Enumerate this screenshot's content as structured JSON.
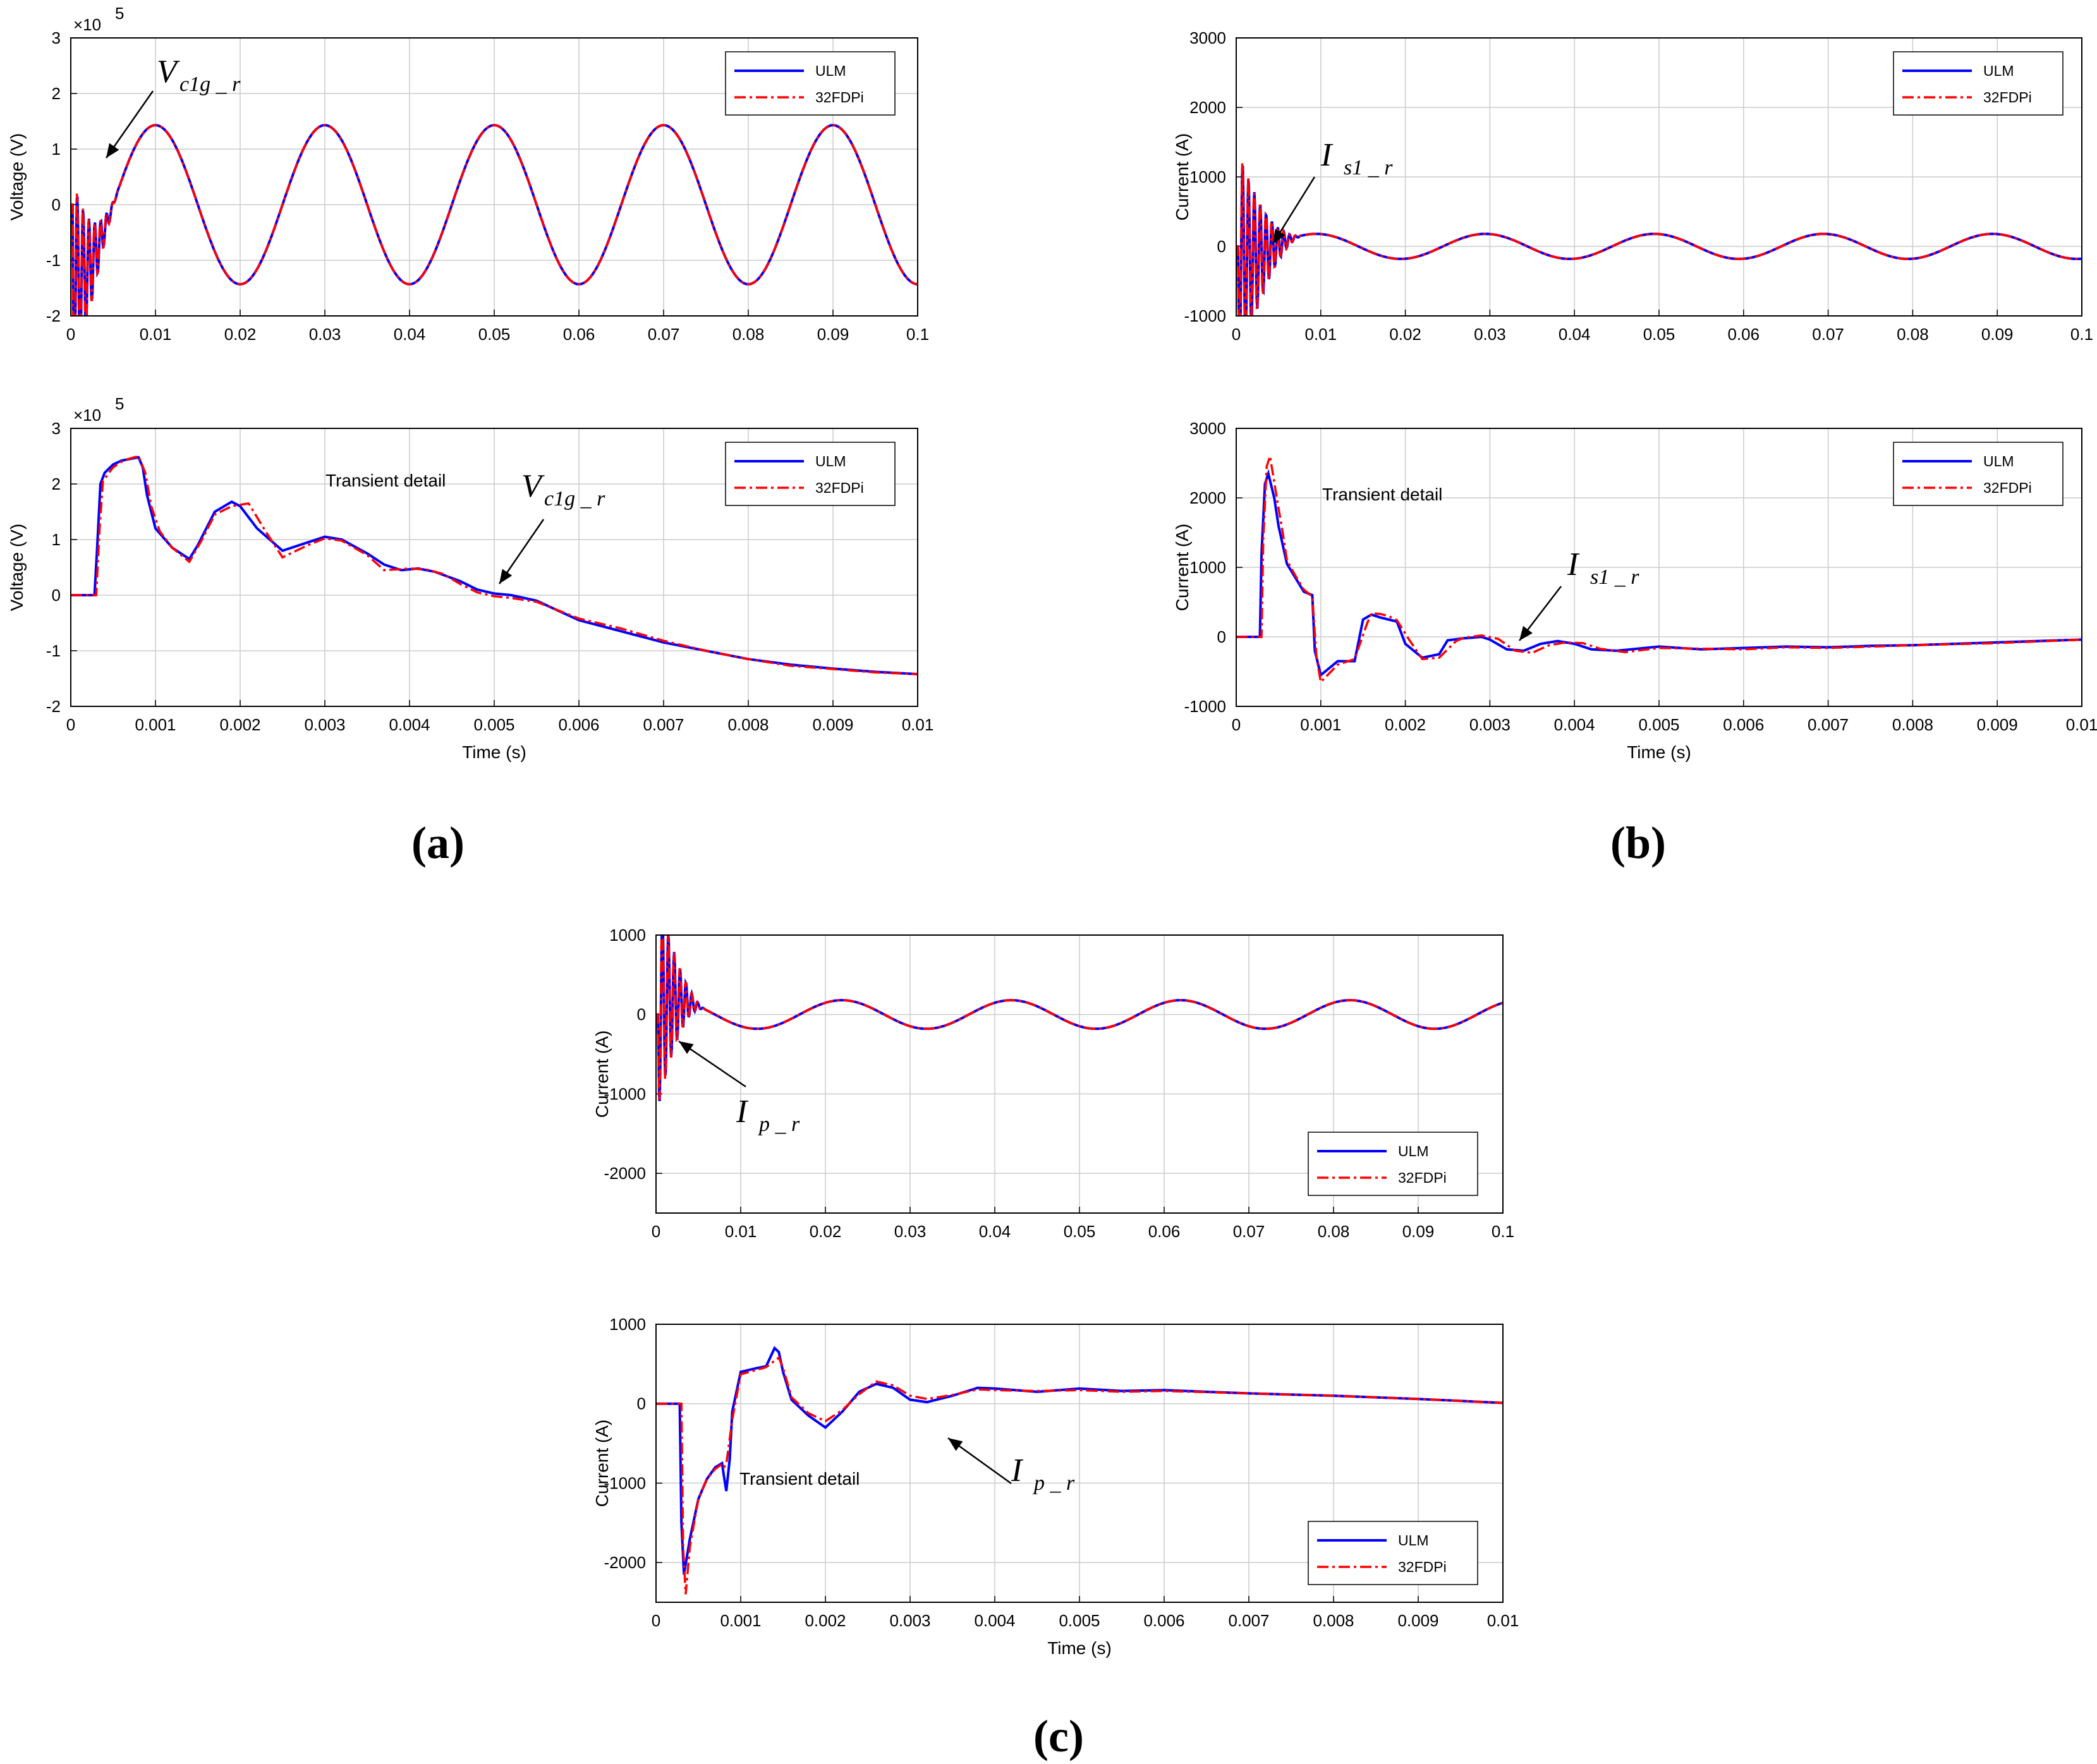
{
  "figure": {
    "panel_labels": [
      "(a)",
      "(b)",
      "(c)"
    ]
  },
  "colors": {
    "ulm": "#0000ff",
    "fdpi": "#ff0000",
    "grid": "#cccccc"
  },
  "chart_data": [
    {
      "id": "a_full",
      "type": "line",
      "panel": "(a)",
      "xlabel": "",
      "ylabel": "Voltage (V)",
      "xlim": [
        0,
        0.1
      ],
      "ylim": [
        -2,
        3
      ],
      "x_ticks": [
        "0",
        "0.01",
        "0.02",
        "0.03",
        "0.04",
        "0.05",
        "0.06",
        "0.07",
        "0.08",
        "0.09",
        "0.1"
      ],
      "y_ticks": [
        "3",
        "2",
        "1",
        "0",
        "-1",
        "-2"
      ],
      "exponent": "10",
      "exponent_power": "5",
      "legend": [
        "ULM",
        "32FDPi"
      ],
      "annotation": {
        "symbol": "V",
        "subscript": "c1g _ r",
        "text": ""
      },
      "signal": {
        "kind": "sine_with_transient",
        "amplitude": 1.43,
        "frequency_hz": 50,
        "phase_deg": -90,
        "transient_end_s": 0.006
      }
    },
    {
      "id": "a_detail",
      "type": "line",
      "panel": "(a)",
      "xlabel": "Time (s)",
      "ylabel": "Voltage (V)",
      "xlim": [
        0,
        0.01
      ],
      "ylim": [
        -2,
        3
      ],
      "x_ticks": [
        "0",
        "0.001",
        "0.002",
        "0.003",
        "0.004",
        "0.005",
        "0.006",
        "0.007",
        "0.008",
        "0.009",
        "0.01"
      ],
      "y_ticks": [
        "3",
        "2",
        "1",
        "0",
        "-1",
        "-2"
      ],
      "exponent": "10",
      "exponent_power": "5",
      "legend": [
        "ULM",
        "32FDPi"
      ],
      "annotation": {
        "symbol": "V",
        "subscript": "c1g _ r",
        "text": "Transient detail"
      },
      "series": [
        {
          "name": "ULM",
          "x": [
            0,
            0.00028,
            0.00031,
            0.00035,
            0.0004,
            0.0005,
            0.0006,
            0.0007,
            0.0008,
            0.00085,
            0.0009,
            0.001,
            0.0012,
            0.0014,
            0.0015,
            0.0017,
            0.0019,
            0.002,
            0.0022,
            0.0025,
            0.0028,
            0.003,
            0.0032,
            0.0035,
            0.0037,
            0.0039,
            0.0041,
            0.0043,
            0.0046,
            0.0048,
            0.005,
            0.0052,
            0.0055,
            0.006,
            0.0065,
            0.007,
            0.0075,
            0.008,
            0.0085,
            0.009,
            0.0095,
            0.01
          ],
          "y": [
            0,
            0,
            0.8,
            2.0,
            2.2,
            2.35,
            2.42,
            2.45,
            2.48,
            2.3,
            1.8,
            1.2,
            0.85,
            0.65,
            0.9,
            1.5,
            1.68,
            1.6,
            1.2,
            0.8,
            0.95,
            1.05,
            1.0,
            0.75,
            0.55,
            0.45,
            0.48,
            0.42,
            0.25,
            0.1,
            0.03,
            0.0,
            -0.1,
            -0.45,
            -0.65,
            -0.85,
            -1.0,
            -1.15,
            -1.25,
            -1.32,
            -1.38,
            -1.42
          ]
        },
        {
          "name": "32FDPi",
          "x": [
            0,
            0.0003,
            0.00034,
            0.00038,
            0.00045,
            0.0005,
            0.0006,
            0.0007,
            0.0008,
            0.00088,
            0.00095,
            0.00105,
            0.0012,
            0.0014,
            0.00155,
            0.0017,
            0.0019,
            0.0021,
            0.0023,
            0.0025,
            0.0028,
            0.003,
            0.0032,
            0.0035,
            0.0037,
            0.004,
            0.0042,
            0.0044,
            0.0046,
            0.0048,
            0.005,
            0.0052,
            0.0055,
            0.006,
            0.0065,
            0.007,
            0.0075,
            0.008,
            0.0085,
            0.009,
            0.0095,
            0.01
          ],
          "y": [
            0,
            0,
            1.2,
            2.05,
            2.2,
            2.3,
            2.4,
            2.46,
            2.5,
            2.2,
            1.6,
            1.15,
            0.85,
            0.6,
            1.0,
            1.45,
            1.6,
            1.65,
            1.15,
            0.68,
            0.9,
            1.02,
            0.98,
            0.72,
            0.45,
            0.48,
            0.46,
            0.38,
            0.2,
            0.05,
            -0.02,
            -0.05,
            -0.12,
            -0.42,
            -0.6,
            -0.82,
            -1.0,
            -1.15,
            -1.27,
            -1.33,
            -1.39,
            -1.42
          ]
        }
      ]
    },
    {
      "id": "b_full",
      "type": "line",
      "panel": "(b)",
      "xlabel": "",
      "ylabel": "Current (A)",
      "xlim": [
        0,
        0.1
      ],
      "ylim": [
        -1000,
        3000
      ],
      "x_ticks": [
        "0",
        "0.01",
        "0.02",
        "0.03",
        "0.04",
        "0.05",
        "0.06",
        "0.07",
        "0.08",
        "0.09",
        "0.1"
      ],
      "y_ticks": [
        "3000",
        "2000",
        "1000",
        "0",
        "-1000"
      ],
      "legend": [
        "ULM",
        "32FDPi"
      ],
      "annotation": {
        "symbol": "I",
        "subscript": "s1 _ r",
        "text": ""
      },
      "signal": {
        "kind": "sine_with_transient",
        "amplitude": 180,
        "frequency_hz": 50,
        "phase_deg": -80,
        "transient_end_s": 0.008
      }
    },
    {
      "id": "b_detail",
      "type": "line",
      "panel": "(b)",
      "xlabel": "Time (s)",
      "ylabel": "Current (A)",
      "xlim": [
        0,
        0.01
      ],
      "ylim": [
        -1000,
        3000
      ],
      "x_ticks": [
        "0",
        "0.001",
        "0.002",
        "0.003",
        "0.004",
        "0.005",
        "0.006",
        "0.007",
        "0.008",
        "0.009",
        "0.01"
      ],
      "y_ticks": [
        "3000",
        "2000",
        "1000",
        "0",
        "-1000"
      ],
      "legend": [
        "ULM",
        "32FDPi"
      ],
      "annotation": {
        "symbol": "I",
        "subscript": "s1 _ r",
        "text": "Transient detail"
      },
      "series": [
        {
          "name": "ULM",
          "x": [
            0,
            0.00028,
            0.0003,
            0.00034,
            0.00038,
            0.00045,
            0.0005,
            0.0006,
            0.0007,
            0.0008,
            0.0009,
            0.00093,
            0.001,
            0.0012,
            0.0014,
            0.0015,
            0.0016,
            0.0017,
            0.0018,
            0.0019,
            0.002,
            0.0022,
            0.0024,
            0.0025,
            0.0027,
            0.0029,
            0.003,
            0.0032,
            0.0034,
            0.0036,
            0.0038,
            0.004,
            0.0042,
            0.0045,
            0.005,
            0.0055,
            0.006,
            0.0065,
            0.007,
            0.0075,
            0.008,
            0.009,
            0.01
          ],
          "y": [
            0,
            0,
            1200,
            2200,
            2350,
            2000,
            1600,
            1050,
            850,
            650,
            600,
            -200,
            -550,
            -350,
            -350,
            250,
            320,
            280,
            250,
            220,
            -100,
            -300,
            -250,
            -50,
            -20,
            0,
            -40,
            -180,
            -200,
            -100,
            -60,
            -100,
            -180,
            -200,
            -140,
            -180,
            -160,
            -140,
            -150,
            -130,
            -120,
            -80,
            -40
          ]
        },
        {
          "name": "32FDPi",
          "x": [
            0,
            0.0003,
            0.00032,
            0.00036,
            0.0004,
            0.00048,
            0.00055,
            0.0006,
            0.0007,
            0.0008,
            0.0009,
            0.00095,
            0.001,
            0.0012,
            0.0014,
            0.00155,
            0.0016,
            0.0017,
            0.0018,
            0.0019,
            0.00205,
            0.0022,
            0.0024,
            0.0026,
            0.0027,
            0.0029,
            0.0031,
            0.0033,
            0.0035,
            0.0037,
            0.0039,
            0.0041,
            0.0043,
            0.0046,
            0.005,
            0.0055,
            0.006,
            0.0065,
            0.007,
            0.0075,
            0.008,
            0.009,
            0.01
          ],
          "y": [
            0,
            0,
            1400,
            2450,
            2600,
            2000,
            1500,
            1100,
            880,
            680,
            580,
            -300,
            -650,
            -400,
            -320,
            200,
            340,
            330,
            300,
            240,
            -50,
            -320,
            -300,
            -60,
            -10,
            20,
            -30,
            -200,
            -230,
            -120,
            -80,
            -90,
            -170,
            -220,
            -160,
            -170,
            -180,
            -150,
            -160,
            -140,
            -120,
            -90,
            -40
          ]
        }
      ]
    },
    {
      "id": "c_full",
      "type": "line",
      "panel": "(c)",
      "xlabel": "",
      "ylabel": "Current (A)",
      "xlim": [
        0,
        0.1
      ],
      "ylim": [
        -2500,
        1000
      ],
      "x_ticks": [
        "0",
        "0.01",
        "0.02",
        "0.03",
        "0.04",
        "0.05",
        "0.06",
        "0.07",
        "0.08",
        "0.09",
        "0.1"
      ],
      "y_ticks": [
        "1000",
        "0",
        "-1000",
        "-2000"
      ],
      "legend": [
        "ULM",
        "32FDPi"
      ],
      "annotation": {
        "symbol": "I",
        "subscript": "p _ r",
        "text": ""
      },
      "signal": {
        "kind": "sine_with_transient",
        "amplitude": 180,
        "frequency_hz": 50,
        "phase_deg": 55,
        "transient_end_s": 0.006
      }
    },
    {
      "id": "c_detail",
      "type": "line",
      "panel": "(c)",
      "xlabel": "Time (s)",
      "ylabel": "Current (A)",
      "xlim": [
        0,
        0.01
      ],
      "ylim": [
        -2500,
        1000
      ],
      "x_ticks": [
        "0",
        "0.001",
        "0.002",
        "0.003",
        "0.004",
        "0.005",
        "0.006",
        "0.007",
        "0.008",
        "0.009",
        "0.01"
      ],
      "y_ticks": [
        "1000",
        "0",
        "-1000",
        "-2000"
      ],
      "legend": [
        "ULM",
        "32FDPi"
      ],
      "annotation": {
        "symbol": "I",
        "subscript": "p _ r",
        "text": "Transient detail"
      },
      "series": [
        {
          "name": "ULM",
          "x": [
            0,
            0.00028,
            0.0003,
            0.00033,
            0.0004,
            0.0005,
            0.0006,
            0.0007,
            0.00078,
            0.0008,
            0.00083,
            0.00087,
            0.0009,
            0.001,
            0.0012,
            0.0013,
            0.0014,
            0.00145,
            0.0015,
            0.0016,
            0.0018,
            0.002,
            0.0022,
            0.0024,
            0.0026,
            0.0028,
            0.003,
            0.0032,
            0.0035,
            0.0038,
            0.004,
            0.0045,
            0.005,
            0.0055,
            0.006,
            0.007,
            0.008,
            0.009,
            0.01
          ],
          "y": [
            0,
            0,
            -1500,
            -2150,
            -1700,
            -1200,
            -950,
            -800,
            -750,
            -900,
            -1100,
            -700,
            -100,
            400,
            450,
            470,
            700,
            650,
            400,
            50,
            -150,
            -300,
            -100,
            150,
            250,
            200,
            50,
            20,
            100,
            200,
            190,
            150,
            190,
            160,
            170,
            130,
            100,
            60,
            10
          ]
        },
        {
          "name": "32FDPi",
          "x": [
            0,
            0.0003,
            0.00032,
            0.00035,
            0.0004,
            0.0005,
            0.0006,
            0.0007,
            0.00078,
            0.0008,
            0.00083,
            0.0009,
            0.001,
            0.0012,
            0.0013,
            0.00145,
            0.0015,
            0.0016,
            0.0018,
            0.002,
            0.0022,
            0.0024,
            0.0026,
            0.0028,
            0.003,
            0.0032,
            0.0035,
            0.0038,
            0.004,
            0.0045,
            0.005,
            0.0055,
            0.006,
            0.007,
            0.008,
            0.009,
            0.01
          ],
          "y": [
            0,
            0,
            -1800,
            -2400,
            -1800,
            -1200,
            -950,
            -820,
            -760,
            -800,
            -760,
            -200,
            370,
            430,
            460,
            580,
            450,
            80,
            -120,
            -220,
            -80,
            120,
            280,
            230,
            100,
            60,
            110,
            180,
            170,
            160,
            170,
            150,
            160,
            130,
            100,
            60,
            10
          ]
        }
      ]
    }
  ]
}
